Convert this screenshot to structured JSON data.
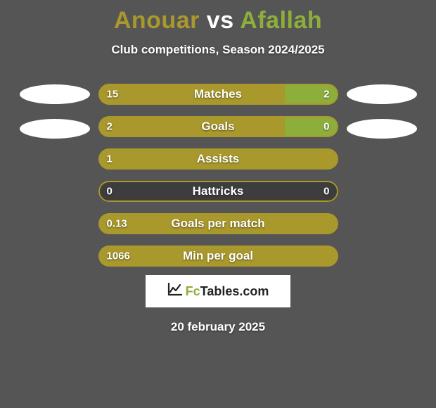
{
  "title_p1": "Anouar",
  "title_vs": "vs",
  "title_p2": "Afallah",
  "title_p1_color": "#a9982b",
  "title_vs_color": "#ffffff",
  "title_p2_color": "#8eae3c",
  "subtitle": "Club competitions, Season 2024/2025",
  "background_color": "#555555",
  "left_color": "#a9982b",
  "right_color": "#8eae3c",
  "full_color": "#a9982b",
  "track_bg": "#3d3d3d",
  "bars": [
    {
      "label": "Matches",
      "left": "15",
      "right": "2",
      "left_pct": 78,
      "right_pct": 22,
      "show_ellipses": true,
      "ellipse_low": false
    },
    {
      "label": "Goals",
      "left": "2",
      "right": "0",
      "left_pct": 78,
      "right_pct": 22,
      "show_ellipses": true,
      "ellipse_low": true
    },
    {
      "label": "Assists",
      "left": "1",
      "right": "",
      "left_pct": 100,
      "right_pct": 0,
      "show_ellipses": false,
      "ellipse_low": false
    },
    {
      "label": "Hattricks",
      "left": "0",
      "right": "0",
      "left_pct": 0,
      "right_pct": 0,
      "show_ellipses": false,
      "ellipse_low": false
    },
    {
      "label": "Goals per match",
      "left": "0.13",
      "right": "",
      "left_pct": 100,
      "right_pct": 0,
      "show_ellipses": false,
      "ellipse_low": false
    },
    {
      "label": "Min per goal",
      "left": "1066",
      "right": "",
      "left_pct": 100,
      "right_pct": 0,
      "show_ellipses": false,
      "ellipse_low": false
    }
  ],
  "logo_text_1": "Fc",
  "logo_text_2": "Tables.com",
  "logo_text_1_color": "#8eae3c",
  "logo_text_2_color": "#222222",
  "footer_date": "20 february 2025"
}
